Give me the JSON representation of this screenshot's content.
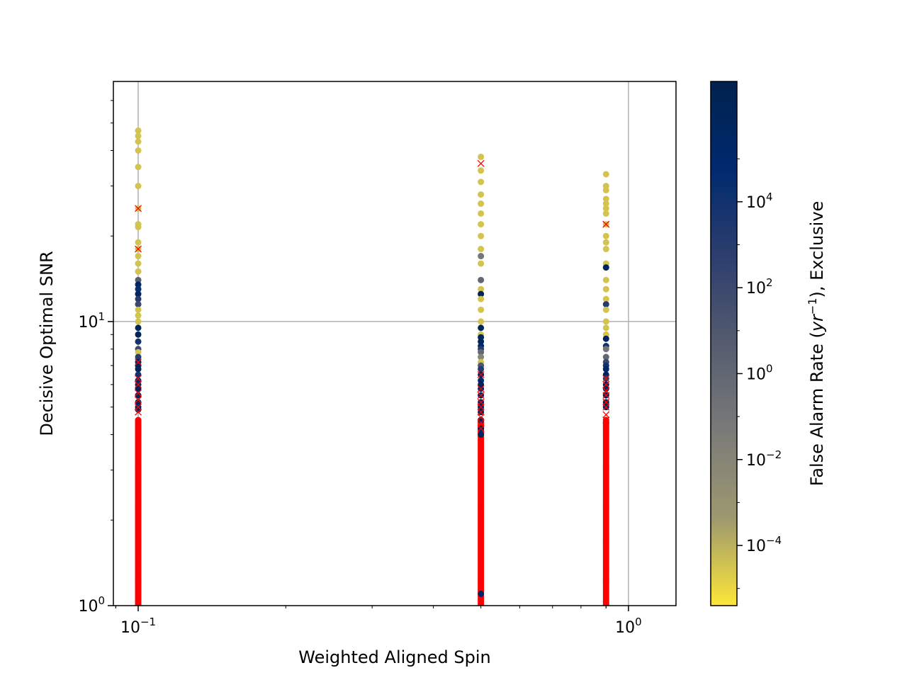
{
  "chart_data": {
    "type": "scatter",
    "xlabel": "Weighted Aligned Spin",
    "ylabel": "Decisive Optimal SNR",
    "xscale": "log",
    "yscale": "log",
    "xlim": [
      0.089,
      1.25
    ],
    "ylim": [
      1,
      70
    ],
    "grid": true,
    "x_ticks": [
      {
        "value": 0.1,
        "base": "10",
        "exp": "−1"
      },
      {
        "value": 1,
        "base": "10",
        "exp": "0"
      }
    ],
    "y_ticks": [
      {
        "value": 1,
        "base": "10",
        "exp": "0"
      },
      {
        "value": 10,
        "base": "10",
        "exp": "1"
      }
    ],
    "colorbar": {
      "label": "False Alarm Rate (yr⁻¹), Exclusive",
      "label_parts": {
        "main": "False Alarm Rate (",
        "var": "yr",
        "sup": "−1",
        "tail": "), Exclusive"
      },
      "scale": "log",
      "range_log10": [
        -5.4,
        6.8
      ],
      "ticks": [
        {
          "log10": -4,
          "base": "10",
          "exp": "−4"
        },
        {
          "log10": -2,
          "base": "10",
          "exp": "−2"
        },
        {
          "log10": 0,
          "base": "10",
          "exp": "0"
        },
        {
          "log10": 2,
          "base": "10",
          "exp": "2"
        },
        {
          "log10": 4,
          "base": "10",
          "exp": "4"
        }
      ],
      "colormap": [
        "#fde737",
        "#9d9870",
        "#7a7b78",
        "#555c6f",
        "#2d3e6e",
        "#002a6e",
        "#00224e"
      ]
    },
    "marker_colors": {
      "missed": "#ff0000",
      "bright": "#fde737",
      "dark": "#00224e"
    },
    "series": [
      {
        "name": "found",
        "marker": "circle",
        "columns": [
          {
            "x": 0.1,
            "points": [
              [
                47,
                -4.5
              ],
              [
                45,
                -4.5
              ],
              [
                43,
                -4.5
              ],
              [
                40,
                -4.5
              ],
              [
                35,
                -4.5
              ],
              [
                30,
                -4.5
              ],
              [
                25,
                -4.5
              ],
              [
                22,
                -4.5
              ],
              [
                21.5,
                -4.5
              ],
              [
                19,
                -4.5
              ],
              [
                18,
                -4.5
              ],
              [
                17,
                -4.5
              ],
              [
                16,
                -4.5
              ],
              [
                15,
                -4.5
              ],
              [
                14,
                0.5
              ],
              [
                13.5,
                5.5
              ],
              [
                13,
                4.5
              ],
              [
                12.5,
                6
              ],
              [
                12,
                3
              ],
              [
                11.5,
                2
              ],
              [
                11,
                -4.5
              ],
              [
                10.5,
                -4.5
              ],
              [
                10,
                -4.5
              ],
              [
                9.5,
                6
              ],
              [
                9,
                6
              ],
              [
                8.5,
                4
              ],
              [
                8,
                2
              ],
              [
                7.8,
                -4.5
              ],
              [
                7.5,
                3
              ],
              [
                7.2,
                5
              ],
              [
                7,
                6
              ],
              [
                6.8,
                6
              ],
              [
                6.5,
                4
              ],
              [
                6.2,
                5
              ],
              [
                6,
                5.5
              ],
              [
                5.8,
                6
              ],
              [
                5.5,
                6
              ],
              [
                5.2,
                6
              ],
              [
                5,
                5.5
              ],
              [
                4.9,
                6
              ]
            ]
          },
          {
            "x": 0.5,
            "points": [
              [
                38,
                -4.5
              ],
              [
                34,
                -4.5
              ],
              [
                31,
                -4.5
              ],
              [
                28,
                -4.5
              ],
              [
                26,
                -4.5
              ],
              [
                24,
                -4.5
              ],
              [
                22,
                -4.5
              ],
              [
                20,
                -4.5
              ],
              [
                18,
                -4.5
              ],
              [
                17,
                -1
              ],
              [
                16,
                -4.5
              ],
              [
                14,
                0
              ],
              [
                13,
                -4.5
              ],
              [
                12.5,
                6
              ],
              [
                12,
                -4.5
              ],
              [
                11,
                -4.5
              ],
              [
                10,
                -4.5
              ],
              [
                9.5,
                6
              ],
              [
                9,
                -4.5
              ],
              [
                8.8,
                5.5
              ],
              [
                8.5,
                6
              ],
              [
                8.2,
                5
              ],
              [
                8,
                3
              ],
              [
                7.8,
                0
              ],
              [
                7.5,
                -2
              ],
              [
                7.2,
                -4.5
              ],
              [
                7,
                1
              ],
              [
                6.8,
                3
              ],
              [
                6.5,
                6
              ],
              [
                6.2,
                5
              ],
              [
                6,
                6
              ],
              [
                5.8,
                5.5
              ],
              [
                5.5,
                6
              ],
              [
                5.2,
                6
              ],
              [
                5,
                5.5
              ],
              [
                4.8,
                6
              ],
              [
                4.5,
                6
              ],
              [
                4.2,
                6
              ],
              [
                4,
                6
              ],
              [
                1.1,
                6
              ]
            ]
          },
          {
            "x": 0.9,
            "points": [
              [
                33,
                -4.5
              ],
              [
                30,
                -4.5
              ],
              [
                29,
                -4.5
              ],
              [
                27,
                -4.5
              ],
              [
                26,
                -4.5
              ],
              [
                25,
                -4.5
              ],
              [
                24,
                -4.5
              ],
              [
                22,
                -4.5
              ],
              [
                20,
                -4.5
              ],
              [
                19,
                -4.5
              ],
              [
                18,
                -4.5
              ],
              [
                16,
                -4.5
              ],
              [
                15.5,
                6
              ],
              [
                14,
                -4.5
              ],
              [
                13,
                -4.5
              ],
              [
                12,
                -4.5
              ],
              [
                11.5,
                3
              ],
              [
                11,
                -4.5
              ],
              [
                10,
                -4.5
              ],
              [
                9.5,
                -4.5
              ],
              [
                9,
                -4.5
              ],
              [
                8.7,
                6
              ],
              [
                8.2,
                4
              ],
              [
                8,
                -1
              ],
              [
                7.5,
                0
              ],
              [
                7.2,
                2
              ],
              [
                7,
                4
              ],
              [
                6.8,
                5
              ],
              [
                6.5,
                6
              ],
              [
                6.3,
                3
              ],
              [
                6,
                6
              ],
              [
                5.8,
                5.5
              ],
              [
                5.5,
                6
              ],
              [
                5.2,
                6
              ],
              [
                5,
                6
              ]
            ]
          }
        ]
      },
      {
        "name": "missed",
        "marker": "x",
        "columns": [
          {
            "x": 0.1,
            "points": [
              25,
              18,
              7.2,
              6.3,
              6,
              5.6,
              5.3,
              5,
              4.8
            ]
          },
          {
            "x": 0.5,
            "points": [
              36,
              6.5,
              5.8,
              5.5,
              5.2,
              5,
              4.8,
              4.6,
              4.4,
              4.2
            ]
          },
          {
            "x": 0.9,
            "points": [
              22,
              6.3,
              6,
              5.7,
              5.5,
              5.2,
              5,
              4.7,
              4.5
            ]
          }
        ],
        "dense_range": [
          1,
          4.5
        ]
      }
    ]
  }
}
